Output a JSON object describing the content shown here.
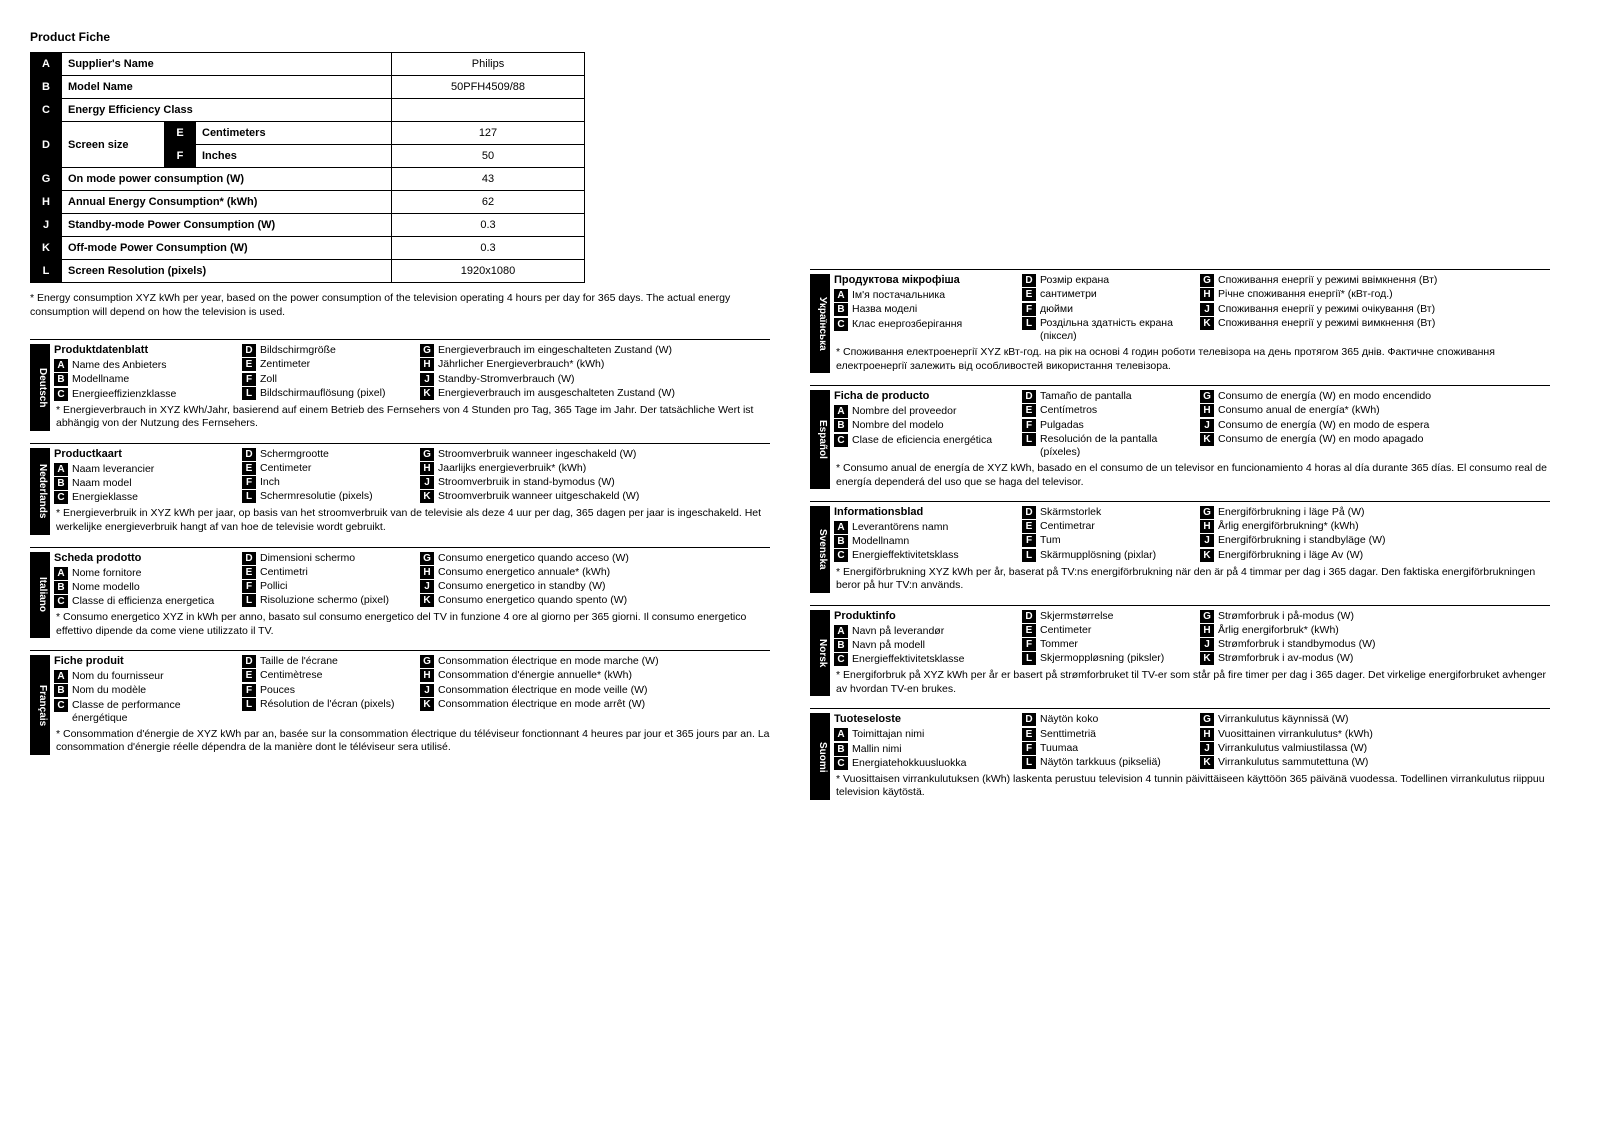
{
  "title": "Product Fiche",
  "table": {
    "A": {
      "label": "Supplier's Name",
      "value": "Philips"
    },
    "B": {
      "label": "Model Name",
      "value": "50PFH4509/88"
    },
    "C": {
      "label": "Energy Efficiency Class",
      "value": ""
    },
    "D": {
      "label": "Screen size",
      "E": {
        "label": "Centimeters",
        "value": "127"
      },
      "F": {
        "label": "Inches",
        "value": "50"
      }
    },
    "G": {
      "label": "On mode power consumption (W)",
      "value": "43"
    },
    "H": {
      "label": "Annual Energy Consumption* (kWh)",
      "value": "62"
    },
    "J": {
      "label": "Standby-mode Power Consumption (W)",
      "value": "0.3"
    },
    "K": {
      "label": "Off-mode Power Consumption (W)",
      "value": "0.3"
    },
    "L": {
      "label": "Screen Resolution (pixels)",
      "value": "1920x1080"
    }
  },
  "footnote": "* Energy consumption XYZ kWh per year, based on the power consumption of the television operating 4 hours per day for 365 days. The actual energy consumption will depend on how the television is used.",
  "left": [
    {
      "lang": "Deutsch",
      "title": "Produktdatenblatt",
      "c1": [
        [
          "A",
          "Name des Anbieters"
        ],
        [
          "B",
          "Modellname"
        ],
        [
          "C",
          "Energieeffizienzklasse"
        ]
      ],
      "c2": [
        [
          "D",
          "Bildschirmgröße"
        ],
        [
          "E",
          "Zentimeter"
        ],
        [
          "F",
          "Zoll"
        ],
        [
          "L",
          "Bildschirmauflösung (pixel)"
        ]
      ],
      "c3": [
        [
          "G",
          "Energieverbrauch im eingeschalteten Zustand (W)"
        ],
        [
          "H",
          "Jährlicher Energieverbrauch* (kWh)"
        ],
        [
          "J",
          "Standby-Stromverbrauch (W)"
        ],
        [
          "K",
          "Energieverbrauch im ausgeschalteten Zustand (W)"
        ]
      ],
      "foot": "* Energieverbrauch in XYZ kWh/Jahr, basierend auf einem Betrieb des Fernsehers von 4 Stunden pro Tag, 365 Tage im Jahr. Der tatsächliche Wert ist abhängig von der Nutzung des Fernsehers."
    },
    {
      "lang": "Nederlands",
      "title": "Productkaart",
      "c1": [
        [
          "A",
          "Naam leverancier"
        ],
        [
          "B",
          "Naam model"
        ],
        [
          "C",
          "Energieklasse"
        ]
      ],
      "c2": [
        [
          "D",
          "Schermgrootte"
        ],
        [
          "E",
          "Centimeter"
        ],
        [
          "F",
          "Inch"
        ],
        [
          "L",
          "Schermresolutie (pixels)"
        ]
      ],
      "c3": [
        [
          "G",
          "Stroomverbruik wanneer ingeschakeld (W)"
        ],
        [
          "H",
          "Jaarlijks energieverbruik* (kWh)"
        ],
        [
          "J",
          "Stroomverbruik in stand-bymodus (W)"
        ],
        [
          "K",
          "Stroomverbruik wanneer uitgeschakeld (W)"
        ]
      ],
      "foot": "* Energieverbruik in XYZ kWh per jaar, op basis van het stroomverbruik van de televisie als deze 4 uur per dag, 365 dagen per jaar is ingeschakeld. Het werkelijke energieverbruik hangt af van hoe de televisie wordt gebruikt."
    },
    {
      "lang": "Italiano",
      "title": "Scheda prodotto",
      "c1": [
        [
          "A",
          "Nome fornitore"
        ],
        [
          "B",
          "Nome modello"
        ],
        [
          "C",
          "Classe di efficienza energetica"
        ]
      ],
      "c2": [
        [
          "D",
          "Dimensioni schermo"
        ],
        [
          "E",
          "Centimetri"
        ],
        [
          "F",
          "Pollici"
        ],
        [
          "L",
          "Risoluzione schermo (pixel)"
        ]
      ],
      "c3": [
        [
          "G",
          "Consumo energetico quando acceso (W)"
        ],
        [
          "H",
          "Consumo energetico annuale* (kWh)"
        ],
        [
          "J",
          "Consumo energetico in standby (W)"
        ],
        [
          "K",
          "Consumo energetico quando spento (W)"
        ]
      ],
      "foot": "* Consumo energetico XYZ in kWh per anno, basato sul consumo energetico del TV in funzione 4 ore al giorno per 365 giorni. Il consumo energetico effettivo dipende da come viene utilizzato il TV."
    },
    {
      "lang": "Français",
      "title": "Fiche produit",
      "c1": [
        [
          "A",
          "Nom du fournisseur"
        ],
        [
          "B",
          "Nom du modèle"
        ],
        [
          "C",
          "Classe de performance énergétique"
        ]
      ],
      "c2": [
        [
          "D",
          "Taille de l'écrane"
        ],
        [
          "E",
          "Centimètrese"
        ],
        [
          "F",
          "Pouces"
        ],
        [
          "L",
          "Résolution de l'écran (pixels)"
        ]
      ],
      "c3": [
        [
          "G",
          "Consommation électrique en mode marche (W)"
        ],
        [
          "H",
          "Consommation d'énergie annuelle* (kWh)"
        ],
        [
          "J",
          "Consommation électrique en mode veille (W)"
        ],
        [
          "K",
          "Consommation électrique en mode arrêt (W)"
        ]
      ],
      "foot": "* Consommation d'énergie de XYZ kWh par an, basée sur la consommation électrique du téléviseur fonctionnant 4 heures par jour et 365 jours par an. La consommation d'énergie réelle dépendra de la manière dont le téléviseur sera utilisé."
    }
  ],
  "right": [
    {
      "lang": "Українська",
      "title": "Продуктова мікрофіша",
      "c1": [
        [
          "A",
          "Ім'я постачальника"
        ],
        [
          "B",
          "Назва моделі"
        ],
        [
          "C",
          "Клас енергозберігання"
        ]
      ],
      "c2": [
        [
          "D",
          "Розмір екрана"
        ],
        [
          "E",
          "сантиметри"
        ],
        [
          "F",
          "дюйми"
        ],
        [
          "L",
          "Роздільна здатність екрана (піксел)"
        ]
      ],
      "c3": [
        [
          "G",
          "Споживання енергії у режимі ввімкнення (Вт)"
        ],
        [
          "H",
          "Річне споживання енергії* (кВт-год.)"
        ],
        [
          "J",
          "Споживання енергії у режимі очікування (Вт)"
        ],
        [
          "K",
          "Споживання енергії у режимі вимкнення (Вт)"
        ]
      ],
      "foot": "* Споживання електроенергії XYZ кВт-год. на рік на основі 4 годин роботи телевізора на день протягом 365 днів. Фактичне споживання електроенергії залежить від особливостей використання телевізора."
    },
    {
      "lang": "Español",
      "title": "Ficha de producto",
      "c1": [
        [
          "A",
          "Nombre del proveedor"
        ],
        [
          "B",
          "Nombre del modelo"
        ],
        [
          "C",
          "Clase de eficiencia energética"
        ]
      ],
      "c2": [
        [
          "D",
          "Tamaño de pantalla"
        ],
        [
          "E",
          "Centímetros"
        ],
        [
          "F",
          "Pulgadas"
        ],
        [
          "L",
          "Resolución de la pantalla (píxeles)"
        ]
      ],
      "c3": [
        [
          "G",
          "Consumo de energía (W) en modo encendido"
        ],
        [
          "H",
          "Consumo anual de energía* (kWh)"
        ],
        [
          "J",
          "Consumo de energía (W) en modo de espera"
        ],
        [
          "K",
          "Consumo de energía (W) en modo apagado"
        ]
      ],
      "foot": "* Consumo anual de energía de XYZ kWh, basado en el consumo de un televisor en funcionamiento 4 horas al día durante 365 días. El consumo real de energía dependerá del uso que se haga del televisor."
    },
    {
      "lang": "Svenska",
      "title": "Informationsblad",
      "c1": [
        [
          "A",
          "Leverantörens namn"
        ],
        [
          "B",
          "Modellnamn"
        ],
        [
          "C",
          "Energieffektivitetsklass"
        ]
      ],
      "c2": [
        [
          "D",
          "Skärmstorlek"
        ],
        [
          "E",
          "Centimetrar"
        ],
        [
          "F",
          "Tum"
        ],
        [
          "L",
          "Skärmupplösning (pixlar)"
        ]
      ],
      "c3": [
        [
          "G",
          "Energiförbrukning i läge På (W)"
        ],
        [
          "H",
          "Årlig energiförbrukning* (kWh)"
        ],
        [
          "J",
          "Energiförbrukning i standbyläge (W)"
        ],
        [
          "K",
          "Energiförbrukning i läge Av (W)"
        ]
      ],
      "foot": "* Energiförbrukning XYZ kWh per år, baserat på TV:ns energiförbrukning när den är på 4 timmar per dag i 365 dagar. Den faktiska energiförbrukningen beror på hur TV:n används."
    },
    {
      "lang": "Norsk",
      "title": "Produktinfo",
      "c1": [
        [
          "A",
          "Navn på leverandør"
        ],
        [
          "B",
          "Navn på modell"
        ],
        [
          "C",
          "Energieffektivitetsklasse"
        ]
      ],
      "c2": [
        [
          "D",
          "Skjermstørrelse"
        ],
        [
          "E",
          "Centimeter"
        ],
        [
          "F",
          "Tommer"
        ],
        [
          "L",
          "Skjermoppløsning (piksler)"
        ]
      ],
      "c3": [
        [
          "G",
          "Strømforbruk i på-modus (W)"
        ],
        [
          "H",
          "Årlig energiforbruk* (kWh)"
        ],
        [
          "J",
          "Strømforbruk i standbymodus (W)"
        ],
        [
          "K",
          "Strømforbruk i av-modus (W)"
        ]
      ],
      "foot": "* Energiforbruk på XYZ kWh per år er basert på strømforbruket til TV-er som står på fire timer per dag i 365 dager. Det virkelige energiforbruket avhenger av hvordan TV-en brukes."
    },
    {
      "lang": "Suomi",
      "title": "Tuoteseloste",
      "c1": [
        [
          "A",
          "Toimittajan nimi"
        ],
        [
          "B",
          "Mallin nimi"
        ],
        [
          "C",
          "Energiatehokkuusluokka"
        ]
      ],
      "c2": [
        [
          "D",
          "Näytön koko"
        ],
        [
          "E",
          "Senttimetriä"
        ],
        [
          "F",
          "Tuumaa"
        ],
        [
          "L",
          "Näytön tarkkuus (pikseliä)"
        ]
      ],
      "c3": [
        [
          "G",
          "Virrankulutus käynnissä (W)"
        ],
        [
          "H",
          "Vuosittainen virrankulutus* (kWh)"
        ],
        [
          "J",
          "Virrankulutus valmiustilassa (W)"
        ],
        [
          "K",
          "Virrankulutus sammutettuna (W)"
        ]
      ],
      "foot": "* Vuosittaisen virrankulutuksen (kWh) laskenta perustuu television 4 tunnin päivittäiseen käyttöön 365 päivänä vuodessa. Todellinen virrankulutus riippuu television käytöstä."
    }
  ]
}
